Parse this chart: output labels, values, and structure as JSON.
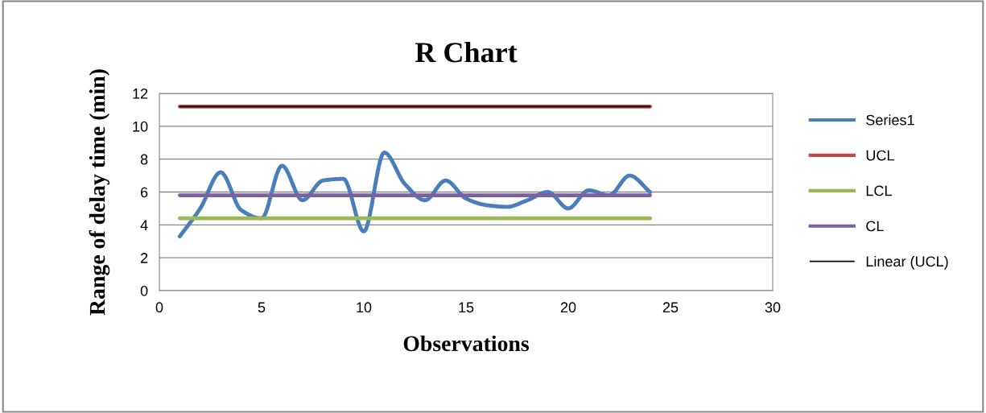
{
  "chart_data": {
    "type": "line",
    "title": "R Chart",
    "xlabel": "Observations",
    "ylabel": "Range of delay time (min)",
    "x": [
      1,
      2,
      3,
      4,
      5,
      6,
      7,
      8,
      9,
      10,
      11,
      12,
      13,
      14,
      15,
      16,
      17,
      18,
      19,
      20,
      21,
      22,
      23,
      24
    ],
    "series": [
      {
        "name": "Series1",
        "color": "#4a7ebb",
        "values": [
          3.3,
          5.0,
          7.2,
          4.9,
          4.4,
          7.6,
          5.5,
          6.7,
          6.8,
          3.6,
          8.4,
          6.5,
          5.5,
          6.7,
          5.6,
          5.2,
          5.1,
          5.5,
          6.0,
          5.0,
          6.1,
          5.8,
          7.0,
          6.0
        ]
      },
      {
        "name": "UCL",
        "color": "#be4b48",
        "values": [
          11.2,
          11.2,
          11.2,
          11.2,
          11.2,
          11.2,
          11.2,
          11.2,
          11.2,
          11.2,
          11.2,
          11.2,
          11.2,
          11.2,
          11.2,
          11.2,
          11.2,
          11.2,
          11.2,
          11.2,
          11.2,
          11.2,
          11.2,
          11.2
        ]
      },
      {
        "name": "LCL",
        "color": "#98b954",
        "values": [
          4.4,
          4.4,
          4.4,
          4.4,
          4.4,
          4.4,
          4.4,
          4.4,
          4.4,
          4.4,
          4.4,
          4.4,
          4.4,
          4.4,
          4.4,
          4.4,
          4.4,
          4.4,
          4.4,
          4.4,
          4.4,
          4.4,
          4.4,
          4.4
        ]
      },
      {
        "name": "CL",
        "color": "#7d60a0",
        "values": [
          5.8,
          5.8,
          5.8,
          5.8,
          5.8,
          5.8,
          5.8,
          5.8,
          5.8,
          5.8,
          5.8,
          5.8,
          5.8,
          5.8,
          5.8,
          5.8,
          5.8,
          5.8,
          5.8,
          5.8,
          5.8,
          5.8,
          5.8,
          5.8
        ]
      },
      {
        "name": "Linear (UCL)",
        "color": "#000000",
        "x": [
          1,
          24
        ],
        "values": [
          11.2,
          11.2
        ]
      }
    ],
    "xlim": [
      0,
      30
    ],
    "xticks": [
      0,
      5,
      10,
      15,
      20,
      25,
      30
    ],
    "ylim": [
      0,
      12
    ],
    "yticks": [
      0,
      2,
      4,
      6,
      8,
      10,
      12
    ],
    "grid": "y",
    "legend": "right",
    "marker": "none",
    "line_style": "solid"
  }
}
